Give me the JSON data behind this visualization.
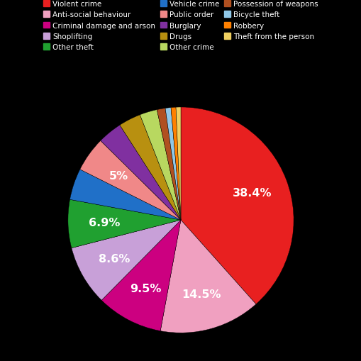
{
  "background_color": "#000000",
  "text_color": "#ffffff",
  "categories": [
    "Violent crime",
    "Anti-social behaviour",
    "Criminal damage and arson",
    "Shoplifting",
    "Other theft",
    "Vehicle crime",
    "Public order",
    "Burglary",
    "Drugs",
    "Other crime",
    "Possession of weapons",
    "Bicycle theft",
    "Robbery",
    "Theft from the person"
  ],
  "values": [
    38.4,
    14.5,
    9.5,
    8.6,
    6.9,
    4.5,
    5.0,
    3.5,
    3.2,
    2.5,
    1.2,
    0.8,
    0.7,
    0.7
  ],
  "colors": [
    "#e82020",
    "#f0a0c0",
    "#cc0080",
    "#c8a0d8",
    "#20a030",
    "#2070c8",
    "#f08888",
    "#8030a0",
    "#b89010",
    "#b8d860",
    "#b05020",
    "#90c8e8",
    "#ff8000",
    "#f0d060"
  ],
  "pct_labels": [
    "38.4%",
    "14.5%",
    "9.5%",
    "8.6%",
    "6.9%",
    "",
    "5%",
    "",
    "",
    "",
    "",
    "",
    "",
    ""
  ],
  "legend_ncol": 3,
  "legend_fontsize": 7.5,
  "pct_fontsize": 11.5
}
